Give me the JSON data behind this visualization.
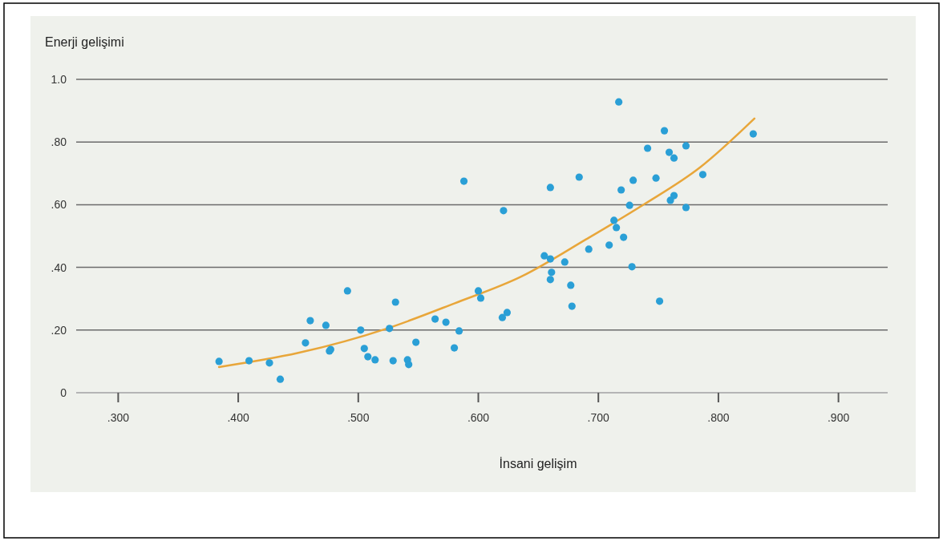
{
  "chart_data": {
    "type": "scatter",
    "xlabel": "İnsani gelişim",
    "ylabel": "Enerji gelişimi",
    "series": [
      {
        "marker": "circle",
        "color": "#2a9fd6",
        "x": [
          0.384,
          0.409,
          0.426,
          0.435,
          0.456,
          0.46,
          0.473,
          0.476,
          0.477,
          0.491,
          0.502,
          0.505,
          0.508,
          0.514,
          0.526,
          0.529,
          0.531,
          0.541,
          0.542,
          0.548,
          0.564,
          0.573,
          0.58,
          0.584,
          0.588,
          0.6,
          0.602,
          0.62,
          0.621,
          0.624,
          0.655,
          0.66,
          0.66,
          0.66,
          0.661,
          0.672,
          0.677,
          0.678,
          0.684,
          0.692,
          0.709,
          0.713,
          0.715,
          0.717,
          0.719,
          0.721,
          0.726,
          0.728,
          0.729,
          0.741,
          0.748,
          0.751,
          0.755,
          0.759,
          0.76,
          0.763,
          0.763,
          0.773,
          0.773,
          0.787,
          0.829
        ],
        "values": [
          0.1,
          0.102,
          0.095,
          0.043,
          0.159,
          0.23,
          0.215,
          0.133,
          0.138,
          0.325,
          0.2,
          0.141,
          0.115,
          0.105,
          0.205,
          0.102,
          0.289,
          0.105,
          0.09,
          0.161,
          0.235,
          0.225,
          0.143,
          0.197,
          0.675,
          0.325,
          0.302,
          0.24,
          0.581,
          0.256,
          0.437,
          0.427,
          0.655,
          0.361,
          0.384,
          0.417,
          0.343,
          0.276,
          0.688,
          0.458,
          0.471,
          0.55,
          0.527,
          0.928,
          0.647,
          0.496,
          0.598,
          0.402,
          0.678,
          0.78,
          0.685,
          0.292,
          0.836,
          0.767,
          0.614,
          0.629,
          0.749,
          0.788,
          0.591,
          0.696,
          0.826
        ]
      },
      {
        "type": "line",
        "color": "#e8a63a",
        "x": [
          0.384,
          0.45,
          0.524,
          0.58,
          0.636,
          0.69,
          0.738,
          0.785,
          0.83
        ],
        "values": [
          0.082,
          0.127,
          0.205,
          0.285,
          0.371,
          0.49,
          0.601,
          0.72,
          0.875
        ]
      }
    ],
    "xlim": [
      0.265,
      0.941
    ],
    "xticks": [
      {
        "value": 0.3,
        "label": ".300"
      },
      {
        "value": 0.4,
        "label": ".400"
      },
      {
        "value": 0.5,
        "label": ".500"
      },
      {
        "value": 0.6,
        "label": ".600"
      },
      {
        "value": 0.7,
        "label": ".700"
      },
      {
        "value": 0.8,
        "label": ".800"
      },
      {
        "value": 0.9,
        "label": ".900"
      }
    ],
    "ylim": [
      0,
      1.0
    ],
    "yticks": [
      0,
      {
        "value": 0.2,
        "label": ".20"
      },
      {
        "value": 0.4,
        "label": ".40"
      },
      {
        "value": 0.6,
        "label": ".60"
      },
      {
        "value": 0.8,
        "label": ".80"
      },
      {
        "value": 1.0,
        "label": "1.0"
      }
    ],
    "grid": "y"
  }
}
